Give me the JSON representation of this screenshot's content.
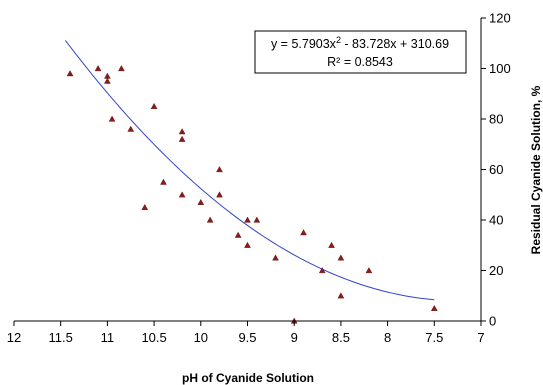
{
  "chart_data": {
    "type": "scatter",
    "xlabel": "pH of Cyanide Solution",
    "ylabel": "Residual Cyanide Solution, %",
    "x_reversed": true,
    "xlim": [
      12,
      7
    ],
    "ylim": [
      0,
      120
    ],
    "x_ticks": [
      "12",
      "11.5",
      "11",
      "10.5",
      "10",
      "9.5",
      "9",
      "8.5",
      "8",
      "7.5",
      "7"
    ],
    "y_ticks": [
      "0",
      "20",
      "40",
      "60",
      "80",
      "100",
      "120"
    ],
    "grid": false,
    "marker_color": "#8B1A1A",
    "trendline_color": "#3344CC",
    "series": [
      {
        "points": [
          [
            11.4,
            98
          ],
          [
            11.1,
            100
          ],
          [
            11.0,
            97
          ],
          [
            11.0,
            95
          ],
          [
            10.95,
            80
          ],
          [
            10.85,
            100
          ],
          [
            10.75,
            76
          ],
          [
            10.6,
            45
          ],
          [
            10.5,
            85
          ],
          [
            10.4,
            55
          ],
          [
            10.2,
            75
          ],
          [
            10.2,
            72
          ],
          [
            10.2,
            50
          ],
          [
            10.0,
            47
          ],
          [
            9.9,
            40
          ],
          [
            9.8,
            60
          ],
          [
            9.8,
            50
          ],
          [
            9.6,
            34
          ],
          [
            9.5,
            40
          ],
          [
            9.5,
            30
          ],
          [
            9.4,
            40
          ],
          [
            9.2,
            25
          ],
          [
            9.0,
            0
          ],
          [
            8.9,
            35
          ],
          [
            8.7,
            20
          ],
          [
            8.6,
            30
          ],
          [
            8.5,
            25
          ],
          [
            8.5,
            10
          ],
          [
            8.2,
            20
          ],
          [
            7.5,
            5
          ]
        ]
      }
    ],
    "trendline": {
      "type": "polynomial",
      "coefficients": [
        5.7903,
        -83.728,
        310.69
      ],
      "x_range": [
        11.45,
        7.5
      ],
      "equation_prefix": "y = 5.7903x",
      "equation_power": "2",
      "equation_suffix": " - 83.728x + 310.69",
      "r2": "R² = 0.8543"
    }
  }
}
